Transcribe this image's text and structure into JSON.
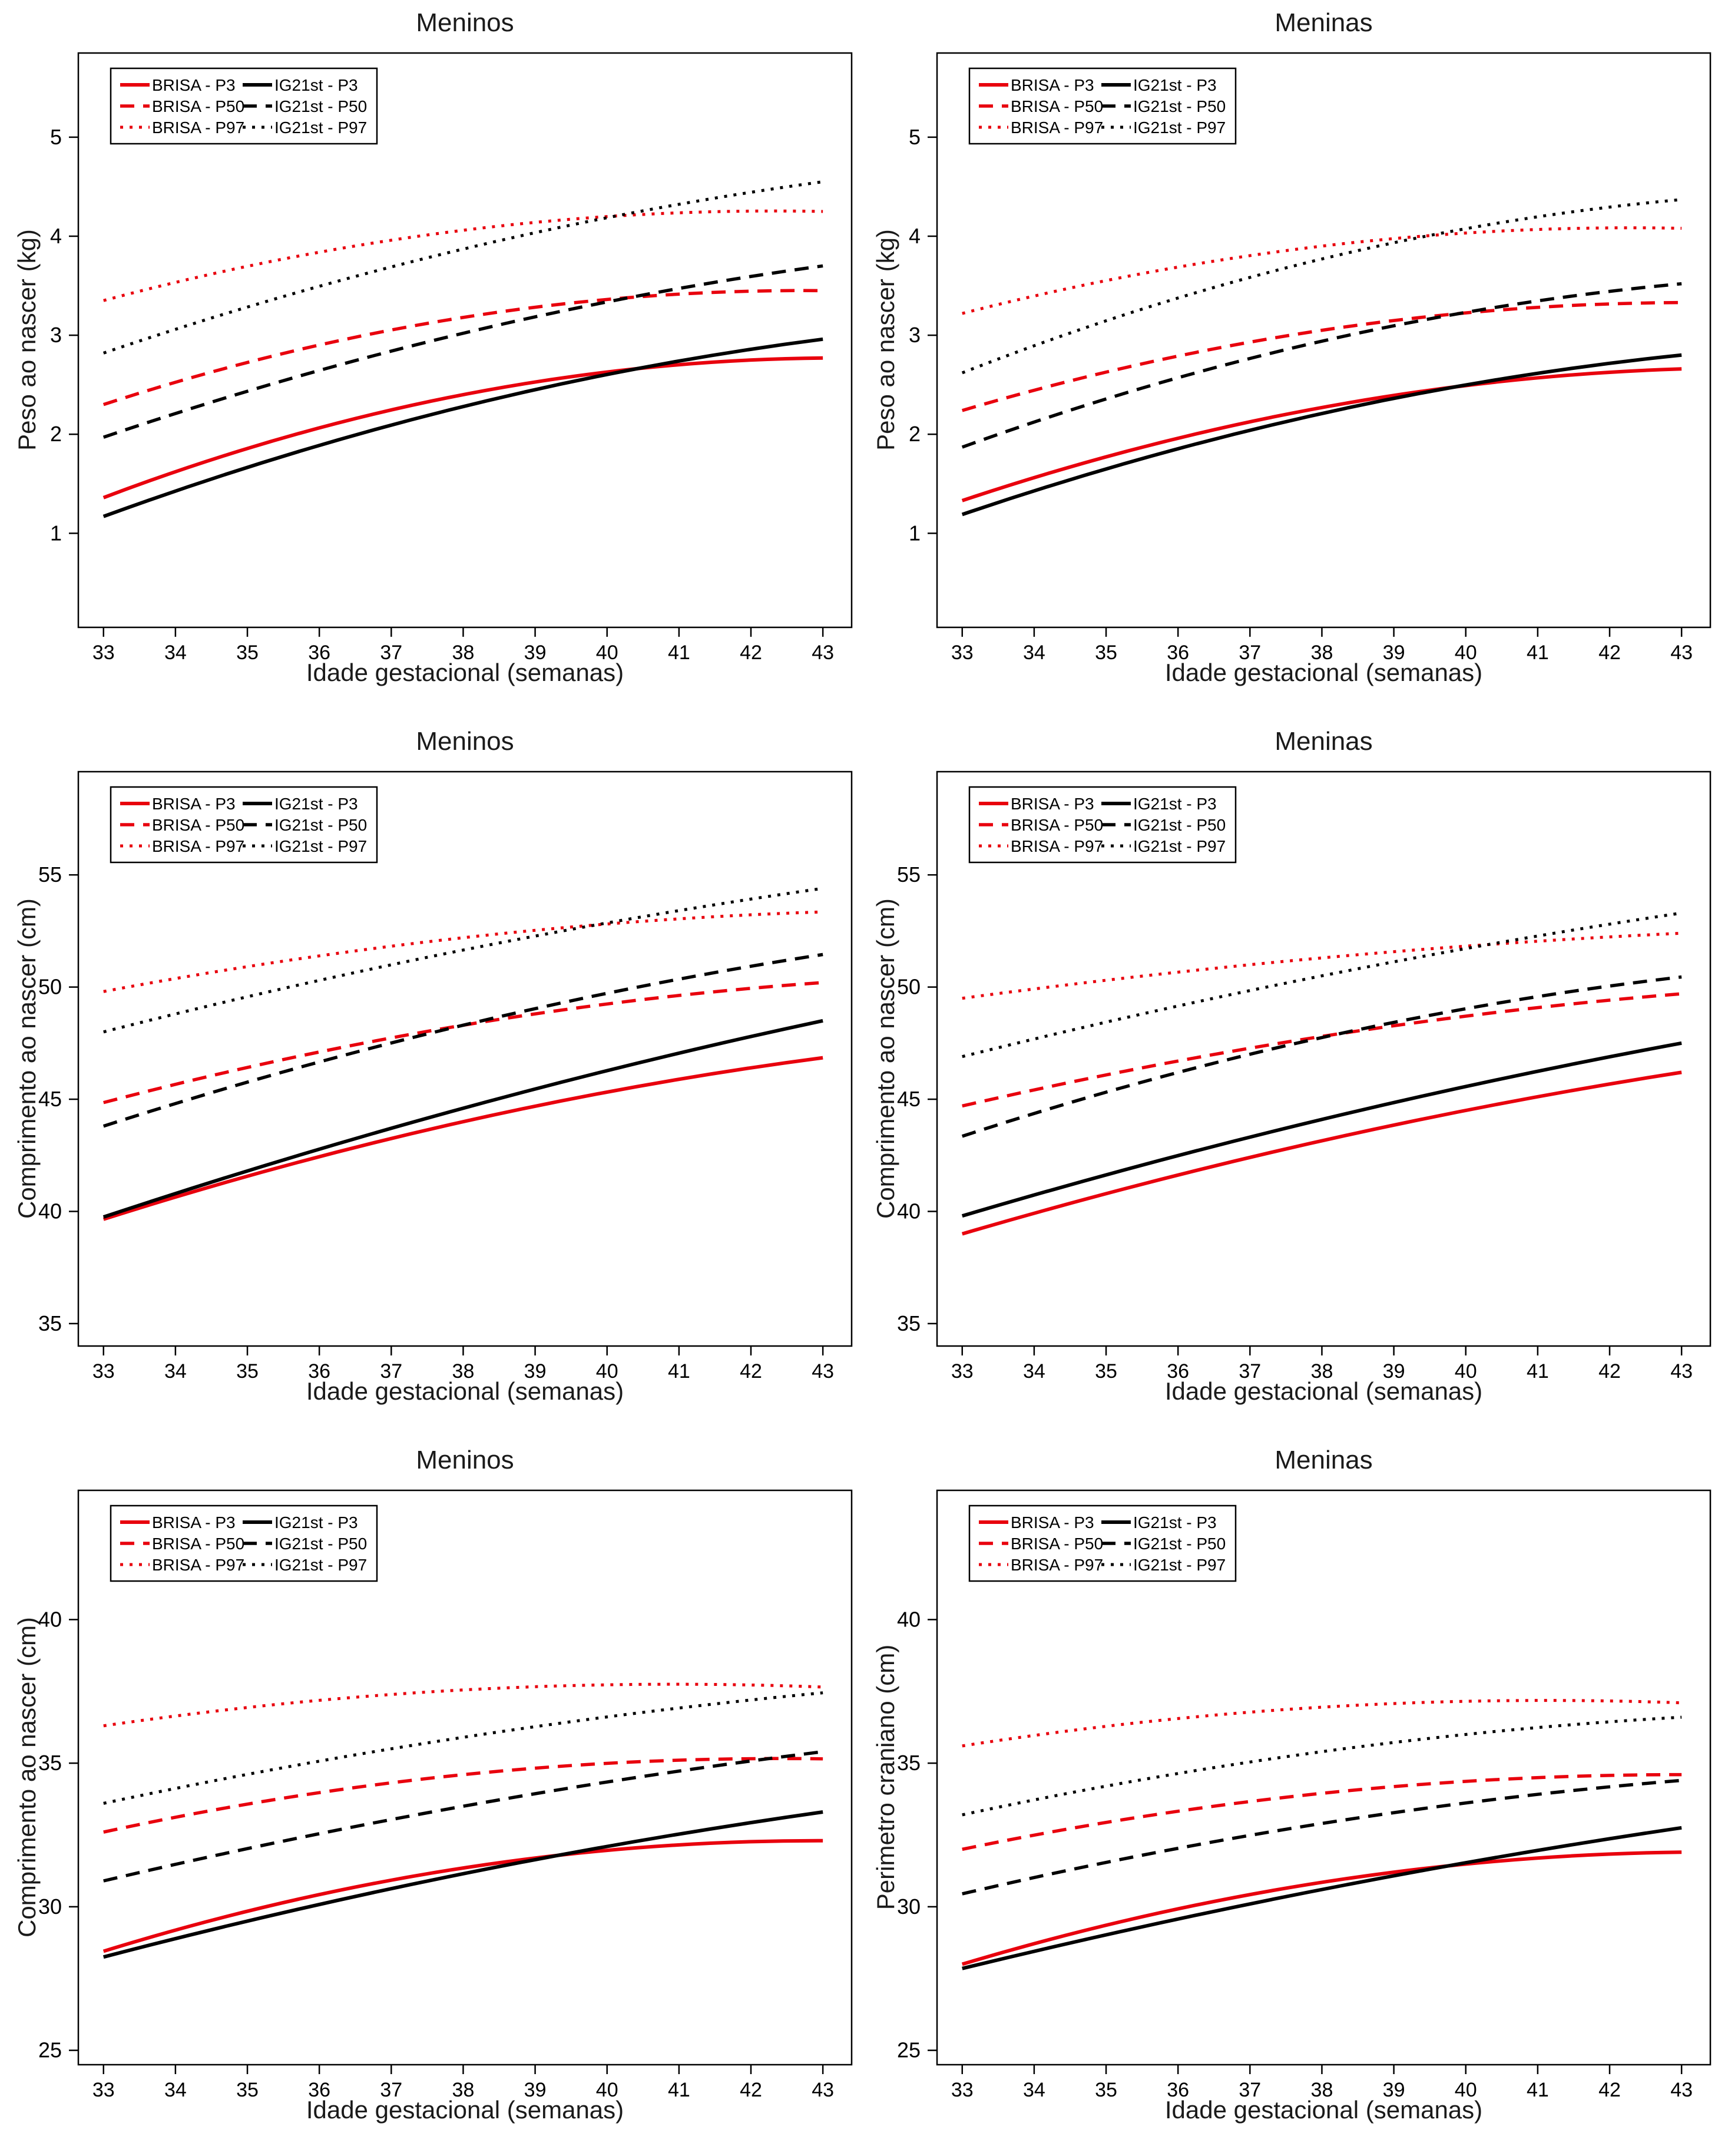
{
  "figure": {
    "background": "#ffffff"
  },
  "colors": {
    "brisa": "#e8000d",
    "ig21st": "#000000",
    "axis": "#000000"
  },
  "axis": {
    "xlabel": "Idade gestacional (semanas)"
  },
  "chart_data": [
    {
      "type": "line",
      "title": "Meninos",
      "xlabel": "Idade gestacional (semanas)",
      "ylabel": "Peso ao nascer (kg)",
      "x_weeks": [
        33,
        38,
        43
      ],
      "xticks": [
        33,
        34,
        35,
        36,
        37,
        38,
        39,
        40,
        41,
        42,
        43
      ],
      "xlim": [
        32.65,
        43.4
      ],
      "yticks": [
        1,
        2,
        3,
        4,
        5
      ],
      "ylim": [
        0.05,
        5.85
      ],
      "legend_position": "top-left",
      "series": [
        {
          "name": "BRISA - P3",
          "color": "#e8000d",
          "style": "solid",
          "values": [
            1.36,
            2.4,
            2.77
          ]
        },
        {
          "name": "BRISA - P50",
          "color": "#e8000d",
          "style": "dashed",
          "values": [
            2.3,
            3.18,
            3.45
          ]
        },
        {
          "name": "BRISA - P97",
          "color": "#e8000d",
          "style": "dotted",
          "values": [
            3.35,
            4.06,
            4.25
          ]
        },
        {
          "name": "IG21st - P3",
          "color": "#000000",
          "style": "solid",
          "values": [
            1.17,
            2.28,
            2.96
          ]
        },
        {
          "name": "IG21st - P50",
          "color": "#000000",
          "style": "dashed",
          "values": [
            1.97,
            3.02,
            3.7
          ]
        },
        {
          "name": "IG21st - P97",
          "color": "#000000",
          "style": "dotted",
          "values": [
            2.82,
            3.87,
            4.55
          ]
        }
      ]
    },
    {
      "type": "line",
      "title": "Meninas",
      "xlabel": "Idade gestacional (semanas)",
      "ylabel": "Peso ao nascer (kg)",
      "x_weeks": [
        33,
        38,
        43
      ],
      "xticks": [
        33,
        34,
        35,
        36,
        37,
        38,
        39,
        40,
        41,
        42,
        43
      ],
      "xlim": [
        32.65,
        43.4
      ],
      "yticks": [
        1,
        2,
        3,
        4,
        5
      ],
      "ylim": [
        0.05,
        5.85
      ],
      "legend_position": "top-left",
      "series": [
        {
          "name": "BRISA - P3",
          "color": "#e8000d",
          "style": "solid",
          "values": [
            1.33,
            2.27,
            2.66
          ]
        },
        {
          "name": "BRISA - P50",
          "color": "#e8000d",
          "style": "dashed",
          "values": [
            2.24,
            3.05,
            3.33
          ]
        },
        {
          "name": "BRISA - P97",
          "color": "#e8000d",
          "style": "dotted",
          "values": [
            3.22,
            3.9,
            4.08
          ]
        },
        {
          "name": "IG21st - P3",
          "color": "#000000",
          "style": "solid",
          "values": [
            1.19,
            2.21,
            2.8
          ]
        },
        {
          "name": "IG21st - P50",
          "color": "#000000",
          "style": "dashed",
          "values": [
            1.87,
            2.94,
            3.52
          ]
        },
        {
          "name": "IG21st - P97",
          "color": "#000000",
          "style": "dotted",
          "values": [
            2.62,
            3.77,
            4.37
          ]
        }
      ]
    },
    {
      "type": "line",
      "title": "Meninos",
      "xlabel": "Idade gestacional (semanas)",
      "ylabel": "Comprimento ao nascer (cm)",
      "x_weeks": [
        33,
        38,
        43
      ],
      "xticks": [
        33,
        34,
        35,
        36,
        37,
        38,
        39,
        40,
        41,
        42,
        43
      ],
      "xlim": [
        32.65,
        43.4
      ],
      "yticks": [
        35,
        40,
        45,
        50,
        55
      ],
      "ylim": [
        34.0,
        59.6
      ],
      "legend_position": "top-left",
      "series": [
        {
          "name": "BRISA - P3",
          "color": "#e8000d",
          "style": "solid",
          "values": [
            39.65,
            44.0,
            46.85
          ]
        },
        {
          "name": "BRISA - P50",
          "color": "#e8000d",
          "style": "dashed",
          "values": [
            44.85,
            48.3,
            50.2
          ]
        },
        {
          "name": "BRISA - P97",
          "color": "#e8000d",
          "style": "dotted",
          "values": [
            49.8,
            52.2,
            53.35
          ]
        },
        {
          "name": "IG21st - P3",
          "color": "#000000",
          "style": "solid",
          "values": [
            39.75,
            44.6,
            48.5
          ]
        },
        {
          "name": "IG21st - P50",
          "color": "#000000",
          "style": "dashed",
          "values": [
            43.8,
            48.3,
            51.45
          ]
        },
        {
          "name": "IG21st - P97",
          "color": "#000000",
          "style": "dotted",
          "values": [
            48.0,
            51.65,
            54.4
          ]
        }
      ]
    },
    {
      "type": "line",
      "title": "Meninas",
      "xlabel": "Idade gestacional (semanas)",
      "ylabel": "Comprimento ao nascer (cm)",
      "x_weeks": [
        33,
        38,
        43
      ],
      "xticks": [
        33,
        34,
        35,
        36,
        37,
        38,
        39,
        40,
        41,
        42,
        43
      ],
      "xlim": [
        32.65,
        43.4
      ],
      "yticks": [
        35,
        40,
        45,
        50,
        55
      ],
      "ylim": [
        34.0,
        59.6
      ],
      "legend_position": "top-left",
      "series": [
        {
          "name": "BRISA - P3",
          "color": "#e8000d",
          "style": "solid",
          "values": [
            39.0,
            43.15,
            46.2
          ]
        },
        {
          "name": "BRISA - P50",
          "color": "#e8000d",
          "style": "dashed",
          "values": [
            44.7,
            47.8,
            49.7
          ]
        },
        {
          "name": "BRISA - P97",
          "color": "#e8000d",
          "style": "dotted",
          "values": [
            49.5,
            51.3,
            52.4
          ]
        },
        {
          "name": "IG21st - P3",
          "color": "#000000",
          "style": "solid",
          "values": [
            39.8,
            44.1,
            47.5
          ]
        },
        {
          "name": "IG21st - P50",
          "color": "#000000",
          "style": "dashed",
          "values": [
            43.35,
            47.75,
            50.45
          ]
        },
        {
          "name": "IG21st - P97",
          "color": "#000000",
          "style": "dotted",
          "values": [
            46.9,
            50.5,
            53.3
          ]
        }
      ]
    },
    {
      "type": "line",
      "title": "Meninos",
      "xlabel": "Idade gestacional (semanas)",
      "ylabel": "Comprimento ao nascer (cm)",
      "x_weeks": [
        33,
        38,
        43
      ],
      "xticks": [
        33,
        34,
        35,
        36,
        37,
        38,
        39,
        40,
        41,
        42,
        43
      ],
      "xlim": [
        32.65,
        43.4
      ],
      "yticks": [
        25,
        30,
        35,
        40
      ],
      "ylim": [
        24.5,
        44.5
      ],
      "legend_position": "top-left",
      "series": [
        {
          "name": "BRISA - P3",
          "color": "#e8000d",
          "style": "solid",
          "values": [
            28.45,
            31.35,
            32.3
          ]
        },
        {
          "name": "BRISA - P50",
          "color": "#e8000d",
          "style": "dashed",
          "values": [
            32.6,
            34.6,
            35.15
          ]
        },
        {
          "name": "BRISA - P97",
          "color": "#e8000d",
          "style": "dotted",
          "values": [
            36.3,
            37.55,
            37.65
          ]
        },
        {
          "name": "IG21st - P3",
          "color": "#000000",
          "style": "solid",
          "values": [
            28.25,
            31.15,
            33.3
          ]
        },
        {
          "name": "IG21st - P50",
          "color": "#000000",
          "style": "dashed",
          "values": [
            30.9,
            33.5,
            35.4
          ]
        },
        {
          "name": "IG21st - P97",
          "color": "#000000",
          "style": "dotted",
          "values": [
            33.6,
            35.9,
            37.45
          ]
        }
      ]
    },
    {
      "type": "line",
      "title": "Meninas",
      "xlabel": "Idade gestacional (semanas)",
      "ylabel": "Perimetro craniano (cm)",
      "x_weeks": [
        33,
        38,
        43
      ],
      "xticks": [
        33,
        34,
        35,
        36,
        37,
        38,
        39,
        40,
        41,
        42,
        43
      ],
      "xlim": [
        32.65,
        43.4
      ],
      "yticks": [
        25,
        30,
        35,
        40
      ],
      "ylim": [
        24.5,
        44.5
      ],
      "legend_position": "top-left",
      "series": [
        {
          "name": "BRISA - P3",
          "color": "#e8000d",
          "style": "solid",
          "values": [
            28.0,
            30.85,
            31.9
          ]
        },
        {
          "name": "BRISA - P50",
          "color": "#e8000d",
          "style": "dashed",
          "values": [
            32.0,
            33.95,
            34.6
          ]
        },
        {
          "name": "BRISA - P97",
          "color": "#e8000d",
          "style": "dotted",
          "values": [
            35.6,
            36.95,
            37.1
          ]
        },
        {
          "name": "IG21st - P3",
          "color": "#000000",
          "style": "solid",
          "values": [
            27.85,
            30.6,
            32.75
          ]
        },
        {
          "name": "IG21st - P50",
          "color": "#000000",
          "style": "dashed",
          "values": [
            30.45,
            32.9,
            34.4
          ]
        },
        {
          "name": "IG21st - P97",
          "color": "#000000",
          "style": "dotted",
          "values": [
            33.2,
            35.4,
            36.6
          ]
        }
      ]
    }
  ]
}
